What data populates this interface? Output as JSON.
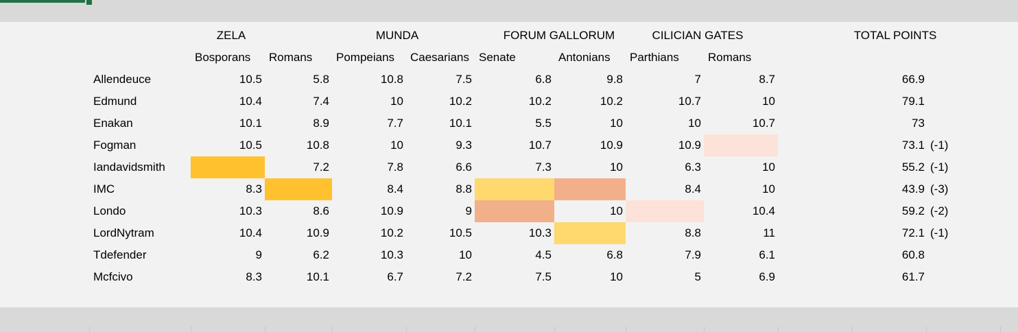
{
  "groups": [
    "ZELA",
    "MUNDA",
    "FORUM GALLORUM",
    "CILICIAN GATES"
  ],
  "total_header": "TOTAL POINTS",
  "sub_headers": [
    "Bosporans",
    "Romans",
    "Pompeians",
    "Caesarians",
    "Senate",
    "Antonians",
    "Parthians",
    "Romans"
  ],
  "rows": [
    {
      "name": "Allendeuce",
      "values": [
        "10.5",
        "5.8",
        "10.8",
        "7.5",
        "6.8",
        "9.8",
        "7",
        "8.7"
      ],
      "total": "66.9",
      "penalty": ""
    },
    {
      "name": "Edmund",
      "values": [
        "10.4",
        "7.4",
        "10",
        "10.2",
        "10.2",
        "10.2",
        "10.7",
        "10"
      ],
      "total": "79.1",
      "penalty": ""
    },
    {
      "name": "Enakan",
      "values": [
        "10.1",
        "8.9",
        "7.7",
        "10.1",
        "5.5",
        "10",
        "10",
        "10.7"
      ],
      "total": "73",
      "penalty": ""
    },
    {
      "name": "Fogman",
      "values": [
        "10.5",
        "10.8",
        "10",
        "9.3",
        "10.7",
        "10.9",
        "10.9",
        ""
      ],
      "total": "73.1",
      "penalty": "(-1)"
    },
    {
      "name": "Iandavidsmith",
      "values": [
        "",
        "7.2",
        "7.8",
        "6.6",
        "7.3",
        "10",
        "6.3",
        "10"
      ],
      "total": "55.2",
      "penalty": "(-1)"
    },
    {
      "name": "IMC",
      "values": [
        "8.3",
        "",
        "8.4",
        "8.8",
        "",
        "",
        "8.4",
        "10"
      ],
      "total": "43.9",
      "penalty": "(-3)"
    },
    {
      "name": "Londo",
      "values": [
        "10.3",
        "8.6",
        "10.9",
        "9",
        "",
        "10",
        "",
        "10.4"
      ],
      "total": "59.2",
      "penalty": "(-2)"
    },
    {
      "name": "LordNytram",
      "values": [
        "10.4",
        "10.9",
        "10.2",
        "10.5",
        "10.3",
        "",
        "8.8",
        "11"
      ],
      "total": "72.1",
      "penalty": "(-1)"
    },
    {
      "name": "Tdefender",
      "values": [
        "9",
        "6.2",
        "10.3",
        "10",
        "4.5",
        "6.8",
        "7.9",
        "6.1"
      ],
      "total": "60.8",
      "penalty": ""
    },
    {
      "name": "Mcfcivo",
      "values": [
        "8.3",
        "10.1",
        "6.7",
        "7.2",
        "7.5",
        "10",
        "5",
        "6.9"
      ],
      "total": "61.7",
      "penalty": ""
    }
  ],
  "highlights": [
    {
      "row": 3,
      "col": 7,
      "color": "#fce2d8"
    },
    {
      "row": 4,
      "col": 0,
      "color": "#ffc12e"
    },
    {
      "row": 5,
      "col": 1,
      "color": "#ffc12e"
    },
    {
      "row": 5,
      "col": 4,
      "color": "#ffd86e"
    },
    {
      "row": 5,
      "col": 5,
      "color": "#f1b08a"
    },
    {
      "row": 6,
      "col": 4,
      "color": "#f1b08a"
    },
    {
      "row": 6,
      "col": 6,
      "color": "#fce2d8"
    },
    {
      "row": 7,
      "col": 5,
      "color": "#ffd86e"
    }
  ]
}
